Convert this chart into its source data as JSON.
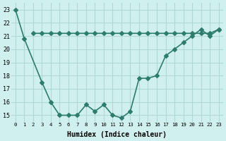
{
  "line1_x": [
    0,
    1,
    3,
    4,
    5,
    6,
    7,
    8,
    9,
    10,
    11,
    12,
    13,
    14,
    15,
    16,
    17,
    18,
    19,
    20,
    21,
    22,
    23
  ],
  "line1_y": [
    23.0,
    20.8,
    17.5,
    16.0,
    15.0,
    15.0,
    15.0,
    15.8,
    15.3,
    15.8,
    15.0,
    14.8,
    15.3,
    17.8,
    17.8,
    18.0,
    19.5,
    20.0,
    20.5,
    21.0,
    21.5,
    21.0,
    21.5
  ],
  "line2_x": [
    2,
    3,
    4,
    5,
    6,
    7,
    8,
    9,
    10,
    11,
    12,
    13,
    14,
    15,
    16,
    17,
    18,
    19,
    20,
    21,
    22,
    23
  ],
  "line2_y": [
    21.2,
    21.2,
    21.2,
    21.2,
    21.2,
    21.2,
    21.2,
    21.2,
    21.2,
    21.2,
    21.2,
    21.2,
    21.2,
    21.2,
    21.2,
    21.2,
    21.2,
    21.2,
    21.2,
    21.2,
    21.2,
    21.5
  ],
  "line_color": "#2d7d6e",
  "bg_color": "#d0efef",
  "grid_color": "#b0d8d8",
  "xlabel": "Humidex (Indice chaleur)",
  "ylim": [
    14.5,
    23.5
  ],
  "xlim": [
    -0.5,
    23.5
  ],
  "yticks": [
    15,
    16,
    17,
    18,
    19,
    20,
    21,
    22,
    23
  ],
  "xticks": [
    0,
    1,
    2,
    3,
    4,
    5,
    6,
    7,
    8,
    9,
    10,
    11,
    12,
    13,
    14,
    15,
    16,
    17,
    18,
    19,
    20,
    21,
    22,
    23
  ],
  "xtick_labels": [
    "0",
    "1",
    "2",
    "3",
    "4",
    "5",
    "6",
    "7",
    "8",
    "9",
    "10",
    "11",
    "12",
    "13",
    "14",
    "15",
    "16",
    "17",
    "18",
    "19",
    "20",
    "21",
    "22",
    "23"
  ],
  "marker": "D",
  "marker_size": 3,
  "linewidth": 1.2
}
